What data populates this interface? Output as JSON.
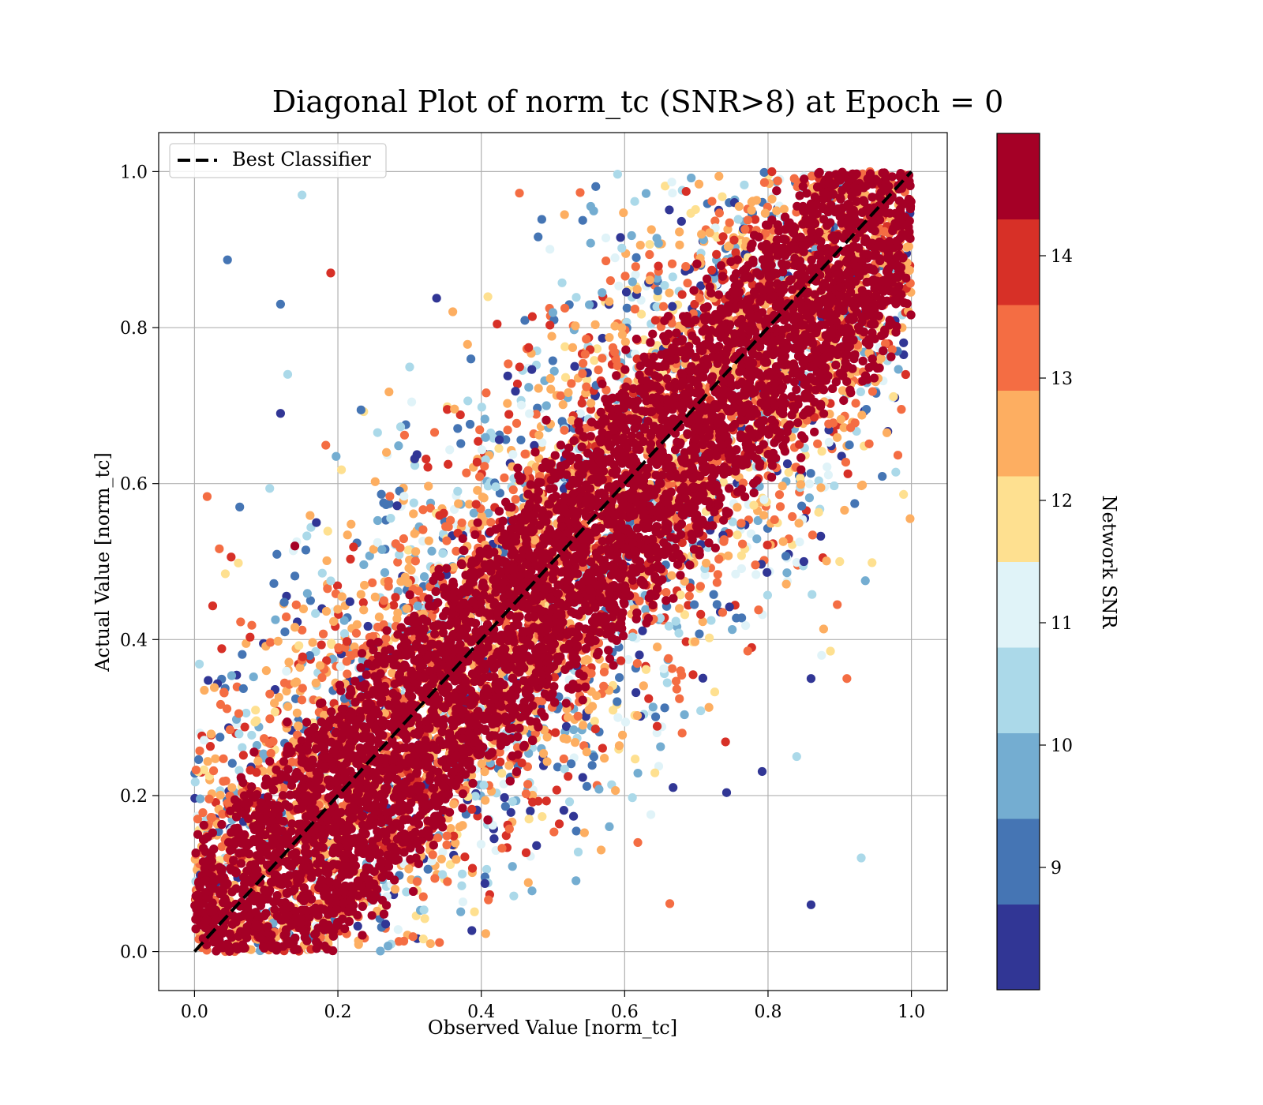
{
  "chart_data": {
    "type": "scatter",
    "title": "Diagonal Plot of norm_tc (SNR>8) at Epoch = 0",
    "xlabel": "Observed Value [norm_tc]",
    "ylabel": "Actual Value [norm_tc]",
    "xlim": [
      -0.05,
      1.05
    ],
    "ylim": [
      -0.05,
      1.05
    ],
    "xticks": [
      "0.0",
      "0.2",
      "0.4",
      "0.6",
      "0.8",
      "1.0"
    ],
    "yticks": [
      "0.0",
      "0.2",
      "0.4",
      "0.6",
      "0.8",
      "1.0"
    ],
    "grid": true,
    "legend": {
      "placement": "upper-left",
      "entries": [
        {
          "label": "Best Classifier",
          "style": "dashed-black-line"
        }
      ]
    },
    "reference_line": {
      "x": [
        0.0,
        1.0
      ],
      "y": [
        0.0,
        1.0
      ]
    },
    "colorbar": {
      "label": "Network SNR",
      "range": [
        8.0,
        15.0
      ],
      "ticks": [
        "9",
        "10",
        "11",
        "12",
        "13",
        "14"
      ],
      "tick_values": [
        9,
        10,
        11,
        12,
        13,
        14
      ],
      "colors": [
        "#313695",
        "#4575b4",
        "#74add1",
        "#abd9e9",
        "#e0f3f8",
        "#fee090",
        "#fdae61",
        "#f46d43",
        "#d73027",
        "#a50026"
      ]
    },
    "points_note": "dense scatter of predictions around y=x; high SNR (dark red) concentrated along the diagonal, lower SNR spread further away",
    "sample_points": [
      {
        "x": 0.15,
        "y": 0.97,
        "snr": 10.2
      },
      {
        "x": 0.12,
        "y": 0.83,
        "snr": 9.0
      },
      {
        "x": 0.12,
        "y": 0.69,
        "snr": 8.5
      },
      {
        "x": 0.13,
        "y": 0.74,
        "snr": 10.4
      },
      {
        "x": 0.19,
        "y": 0.87,
        "snr": 14.2
      },
      {
        "x": 0.17,
        "y": 0.55,
        "snr": 8.5
      },
      {
        "x": 0.14,
        "y": 0.52,
        "snr": 14.8
      },
      {
        "x": 0.91,
        "y": 0.35,
        "snr": 13.5
      },
      {
        "x": 0.93,
        "y": 0.12,
        "snr": 10.6
      },
      {
        "x": 0.86,
        "y": 0.06,
        "snr": 8.5
      },
      {
        "x": 0.85,
        "y": 0.5,
        "snr": 8.5
      },
      {
        "x": 0.9,
        "y": 0.5,
        "snr": 11.8
      },
      {
        "x": 0.86,
        "y": 0.35,
        "snr": 8.5
      },
      {
        "x": 0.84,
        "y": 0.25,
        "snr": 10.2
      }
    ]
  }
}
